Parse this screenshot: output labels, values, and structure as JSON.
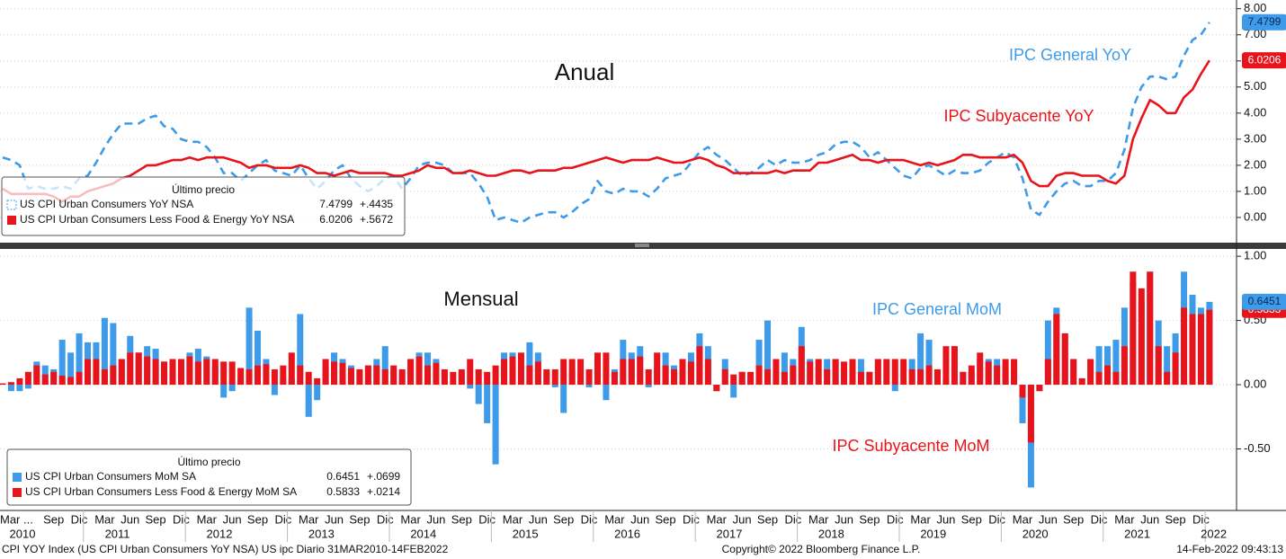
{
  "chart_data": [
    {
      "type": "line",
      "title": "Anual",
      "legend_title": "Último precio",
      "ylim": [
        -1,
        8.3
      ],
      "yticks": [
        {
          "value": 0,
          "label": "0.00"
        },
        {
          "value": 1,
          "label": "1.00"
        },
        {
          "value": 2,
          "label": "2.00"
        },
        {
          "value": 3,
          "label": "3.00"
        },
        {
          "value": 4,
          "label": "4.00"
        },
        {
          "value": 5,
          "label": "5.00"
        },
        {
          "value": 6,
          "label": "6.00"
        },
        {
          "value": 7,
          "label": "7.00"
        },
        {
          "value": 8,
          "label": "8.00"
        }
      ],
      "grid": true,
      "series": [
        {
          "name": "US CPI Urban Consumers YoY NSA",
          "label": "IPC General YoY",
          "color": "#3d9be9",
          "dash": true,
          "last_price": "7.4799",
          "change": "+.4435",
          "values": [
            2.3,
            2.2,
            2.0,
            1.1,
            1.2,
            1.1,
            1.1,
            1.2,
            1.1,
            1.5,
            1.6,
            2.1,
            2.7,
            3.2,
            3.6,
            3.6,
            3.6,
            3.8,
            3.9,
            3.5,
            3.4,
            3.0,
            2.9,
            2.9,
            2.7,
            2.3,
            1.7,
            1.7,
            1.4,
            1.7,
            2.0,
            2.2,
            1.8,
            1.7,
            1.6,
            2.0,
            1.5,
            1.1,
            1.4,
            1.8,
            2.0,
            1.5,
            1.2,
            1.0,
            1.2,
            1.5,
            1.6,
            1.1,
            1.5,
            2.0,
            2.1,
            2.1,
            2.0,
            1.7,
            1.7,
            1.7,
            1.3,
            0.8,
            -0.1,
            0.0,
            -0.1,
            -0.2,
            0.0,
            0.1,
            0.2,
            0.2,
            0.0,
            0.2,
            0.5,
            0.7,
            1.4,
            1.0,
            0.9,
            1.1,
            1.0,
            1.0,
            0.8,
            1.1,
            1.5,
            1.6,
            1.7,
            2.1,
            2.5,
            2.7,
            2.4,
            2.2,
            1.9,
            1.6,
            1.7,
            1.9,
            2.2,
            2.0,
            2.2,
            2.1,
            2.1,
            2.2,
            2.4,
            2.5,
            2.8,
            2.9,
            2.9,
            2.7,
            2.3,
            2.5,
            2.2,
            1.9,
            1.6,
            1.5,
            1.9,
            2.0,
            1.8,
            1.6,
            1.8,
            1.7,
            1.7,
            1.8,
            2.1,
            2.3,
            2.5,
            2.3,
            1.5,
            0.3,
            0.1,
            0.6,
            1.0,
            1.3,
            1.4,
            1.2,
            1.2,
            1.4,
            1.4,
            1.7,
            2.6,
            4.2,
            5.0,
            5.4,
            5.4,
            5.3,
            5.4,
            6.2,
            6.8,
            7.0,
            7.4799
          ]
        },
        {
          "name": "US CPI Urban Consumers Less Food & Energy YoY NSA",
          "label": "IPC Subyacente YoY",
          "color": "#e8141b",
          "dash": false,
          "last_price": "6.0206",
          "change": "+.5672",
          "values": [
            1.1,
            0.9,
            0.9,
            0.9,
            0.9,
            0.9,
            0.8,
            0.6,
            0.8,
            0.8,
            1.0,
            1.1,
            1.2,
            1.3,
            1.5,
            1.6,
            1.8,
            2.0,
            2.0,
            2.1,
            2.2,
            2.2,
            2.3,
            2.2,
            2.3,
            2.3,
            2.3,
            2.2,
            2.1,
            1.9,
            2.0,
            2.0,
            1.9,
            1.9,
            1.9,
            2.0,
            1.9,
            1.7,
            1.7,
            1.6,
            1.7,
            1.8,
            1.7,
            1.7,
            1.7,
            1.7,
            1.6,
            1.6,
            1.7,
            1.8,
            2.0,
            1.9,
            1.9,
            1.7,
            1.7,
            1.8,
            1.7,
            1.6,
            1.6,
            1.7,
            1.8,
            1.8,
            1.7,
            1.8,
            1.8,
            1.8,
            1.9,
            1.9,
            2.0,
            2.1,
            2.2,
            2.3,
            2.2,
            2.1,
            2.2,
            2.2,
            2.2,
            2.3,
            2.2,
            2.1,
            2.1,
            2.2,
            2.3,
            2.2,
            2.0,
            1.9,
            1.7,
            1.7,
            1.7,
            1.7,
            1.7,
            1.8,
            1.7,
            1.8,
            1.8,
            1.8,
            2.1,
            2.1,
            2.2,
            2.3,
            2.4,
            2.2,
            2.2,
            2.1,
            2.2,
            2.2,
            2.2,
            2.1,
            2.0,
            2.1,
            2.0,
            2.1,
            2.2,
            2.4,
            2.4,
            2.3,
            2.3,
            2.3,
            2.3,
            2.4,
            2.1,
            1.4,
            1.2,
            1.2,
            1.6,
            1.7,
            1.7,
            1.6,
            1.6,
            1.6,
            1.4,
            1.3,
            1.6,
            3.0,
            3.8,
            4.5,
            4.3,
            4.0,
            4.0,
            4.6,
            4.9,
            5.5,
            6.0206
          ]
        }
      ]
    },
    {
      "type": "bar",
      "title": "Mensual",
      "legend_title": "Último precio",
      "ylim": [
        -1,
        1.05
      ],
      "yticks": [
        {
          "value": 1,
          "label": "1.00"
        },
        {
          "value": 0.5,
          "label": "0.50"
        },
        {
          "value": 0,
          "label": "0.00"
        },
        {
          "value": -0.5,
          "label": "-0.50"
        }
      ],
      "grid": true,
      "categories": [
        "Mar ...",
        null,
        null,
        null,
        null,
        null,
        "Sep",
        null,
        null,
        "Dic",
        null,
        null,
        "Mar",
        null,
        null,
        "Jun",
        null,
        null,
        "Sep",
        null,
        null,
        "Dic",
        null,
        null,
        "Mar",
        null,
        null,
        "Jun",
        null,
        null,
        "Sep",
        null,
        null,
        "Dic",
        null,
        null,
        "Mar",
        null,
        null,
        "Jun",
        null,
        null,
        "Sep",
        null,
        null,
        "Dic",
        null,
        null,
        "Mar",
        null,
        null,
        "Jun",
        null,
        null,
        "Sep",
        null,
        null,
        "Dic",
        null,
        null,
        "Mar",
        null,
        null,
        "Jun",
        null,
        null,
        "Sep",
        null,
        null,
        "Dic",
        null,
        null,
        "Mar",
        null,
        null,
        "Jun",
        null,
        null,
        "Sep",
        null,
        null,
        "Dic",
        null,
        null,
        "Mar",
        null,
        null,
        "Jun",
        null,
        null,
        "Sep",
        null,
        null,
        "Dic",
        null,
        null,
        "Mar",
        null,
        null,
        "Jun",
        null,
        null,
        "Sep",
        null,
        null,
        "Dic",
        null,
        null,
        "Mar",
        null,
        null,
        "Jun",
        null,
        null,
        "Sep",
        null,
        null,
        "Dic",
        null,
        null,
        "Mar",
        null,
        null,
        "Jun",
        null,
        null,
        "Sep",
        null,
        null,
        "Dic",
        null,
        null,
        "Mar",
        null,
        null,
        "Jun",
        null,
        null,
        "Sep",
        null,
        null,
        "Dic",
        null
      ],
      "years": [
        "2010",
        "2011",
        "2012",
        "2013",
        "2014",
        "2015",
        "2016",
        "2017",
        "2018",
        "2019",
        "2020",
        "2021",
        "2022"
      ],
      "series": [
        {
          "name": "US CPI Urban Consumers MoM SA",
          "label": "IPC General MoM",
          "color": "#3d9be9",
          "last_price": "0.6451",
          "change": "+.0699",
          "values": [
            0.01,
            -0.05,
            -0.05,
            -0.03,
            0.18,
            0.15,
            0.12,
            0.35,
            0.25,
            0.4,
            0.33,
            0.33,
            0.52,
            0.48,
            0.2,
            0.38,
            0.25,
            0.3,
            0.28,
            0.18,
            0.16,
            0.2,
            0.25,
            0.28,
            0.22,
            0.15,
            -0.1,
            -0.05,
            0.05,
            0.6,
            0.42,
            0.2,
            -0.08,
            0.05,
            0.05,
            0.55,
            -0.25,
            -0.12,
            0.15,
            0.25,
            0.2,
            0.15,
            0.1,
            0.15,
            0.2,
            0.3,
            0.12,
            0.1,
            0.2,
            0.25,
            0.25,
            0.2,
            0.1,
            0.0,
            0.1,
            -0.03,
            -0.15,
            -0.3,
            -0.62,
            0.25,
            0.25,
            0.15,
            0.33,
            0.25,
            0.12,
            -0.02,
            -0.22,
            0.12,
            0.05,
            -0.02,
            0.0,
            -0.12,
            0.12,
            0.35,
            0.25,
            0.3,
            -0.02,
            0.15,
            0.25,
            0.15,
            0.2,
            0.25,
            0.4,
            0.3,
            -0.05,
            0.2,
            -0.1,
            0.1,
            0.05,
            0.35,
            0.5,
            0.1,
            0.25,
            0.2,
            0.45,
            0.2,
            0.0,
            0.2,
            0.2,
            0.1,
            0.2,
            0.2,
            0.1,
            0.2,
            0.0,
            -0.05,
            0.0,
            0.2,
            0.4,
            0.35,
            0.1,
            0.05,
            0.3,
            0.1,
            0.1,
            0.2,
            0.2,
            0.2,
            0.1,
            0.1,
            -0.3,
            -0.8,
            -0.05,
            0.5,
            0.6,
            0.4,
            0.2,
            0.05,
            0.2,
            0.3,
            0.3,
            0.35,
            0.6,
            0.8,
            0.65,
            0.88,
            0.5,
            0.3,
            0.4,
            0.88,
            0.7,
            0.6,
            0.6451
          ]
        },
        {
          "name": "US CPI Urban Consumers Less Food & Energy MoM SA",
          "label": "IPC Subyacente MoM",
          "color": "#e8141b",
          "last_price": "0.5833",
          "change": "+.0214",
          "values": [
            0.01,
            0.02,
            0.05,
            0.1,
            0.15,
            0.08,
            0.1,
            0.07,
            0.06,
            0.1,
            0.2,
            0.2,
            0.12,
            0.15,
            0.2,
            0.25,
            0.25,
            0.22,
            0.2,
            0.18,
            0.2,
            0.2,
            0.22,
            0.18,
            0.2,
            0.2,
            0.18,
            0.18,
            0.13,
            0.12,
            0.15,
            0.16,
            0.12,
            0.15,
            0.25,
            0.15,
            0.1,
            0.05,
            0.2,
            0.18,
            0.17,
            0.13,
            0.12,
            0.15,
            0.15,
            0.12,
            0.15,
            0.12,
            0.2,
            0.22,
            0.15,
            0.17,
            0.12,
            0.1,
            0.12,
            0.2,
            0.12,
            0.1,
            0.15,
            0.2,
            0.22,
            0.25,
            0.15,
            0.18,
            0.12,
            0.12,
            0.2,
            0.2,
            0.2,
            0.12,
            0.25,
            0.25,
            0.1,
            0.2,
            0.2,
            0.22,
            0.12,
            0.25,
            0.15,
            0.12,
            0.2,
            0.18,
            0.3,
            0.2,
            -0.05,
            0.12,
            0.08,
            0.1,
            0.1,
            0.15,
            0.12,
            0.2,
            0.1,
            0.15,
            0.3,
            0.18,
            0.2,
            0.12,
            0.2,
            0.18,
            0.2,
            0.1,
            0.1,
            0.2,
            0.2,
            0.2,
            0.2,
            0.12,
            0.12,
            0.15,
            0.12,
            0.3,
            0.3,
            0.1,
            0.15,
            0.25,
            0.18,
            0.15,
            0.2,
            0.2,
            -0.1,
            -0.45,
            -0.05,
            0.2,
            0.55,
            0.4,
            0.2,
            0.05,
            0.2,
            0.1,
            0.15,
            0.1,
            0.3,
            0.88,
            0.75,
            0.88,
            0.3,
            0.1,
            0.25,
            0.6,
            0.55,
            0.55,
            0.5833
          ]
        }
      ]
    }
  ],
  "footer": {
    "left": "CPI YOY Index (US CPI Urban Consumers YoY NSA) US ipc  Diario 31MAR2010-14FEB2022",
    "center": "Copyright© 2022 Bloomberg Finance L.P.",
    "right": "14-Feb-2022 09:43:13"
  }
}
